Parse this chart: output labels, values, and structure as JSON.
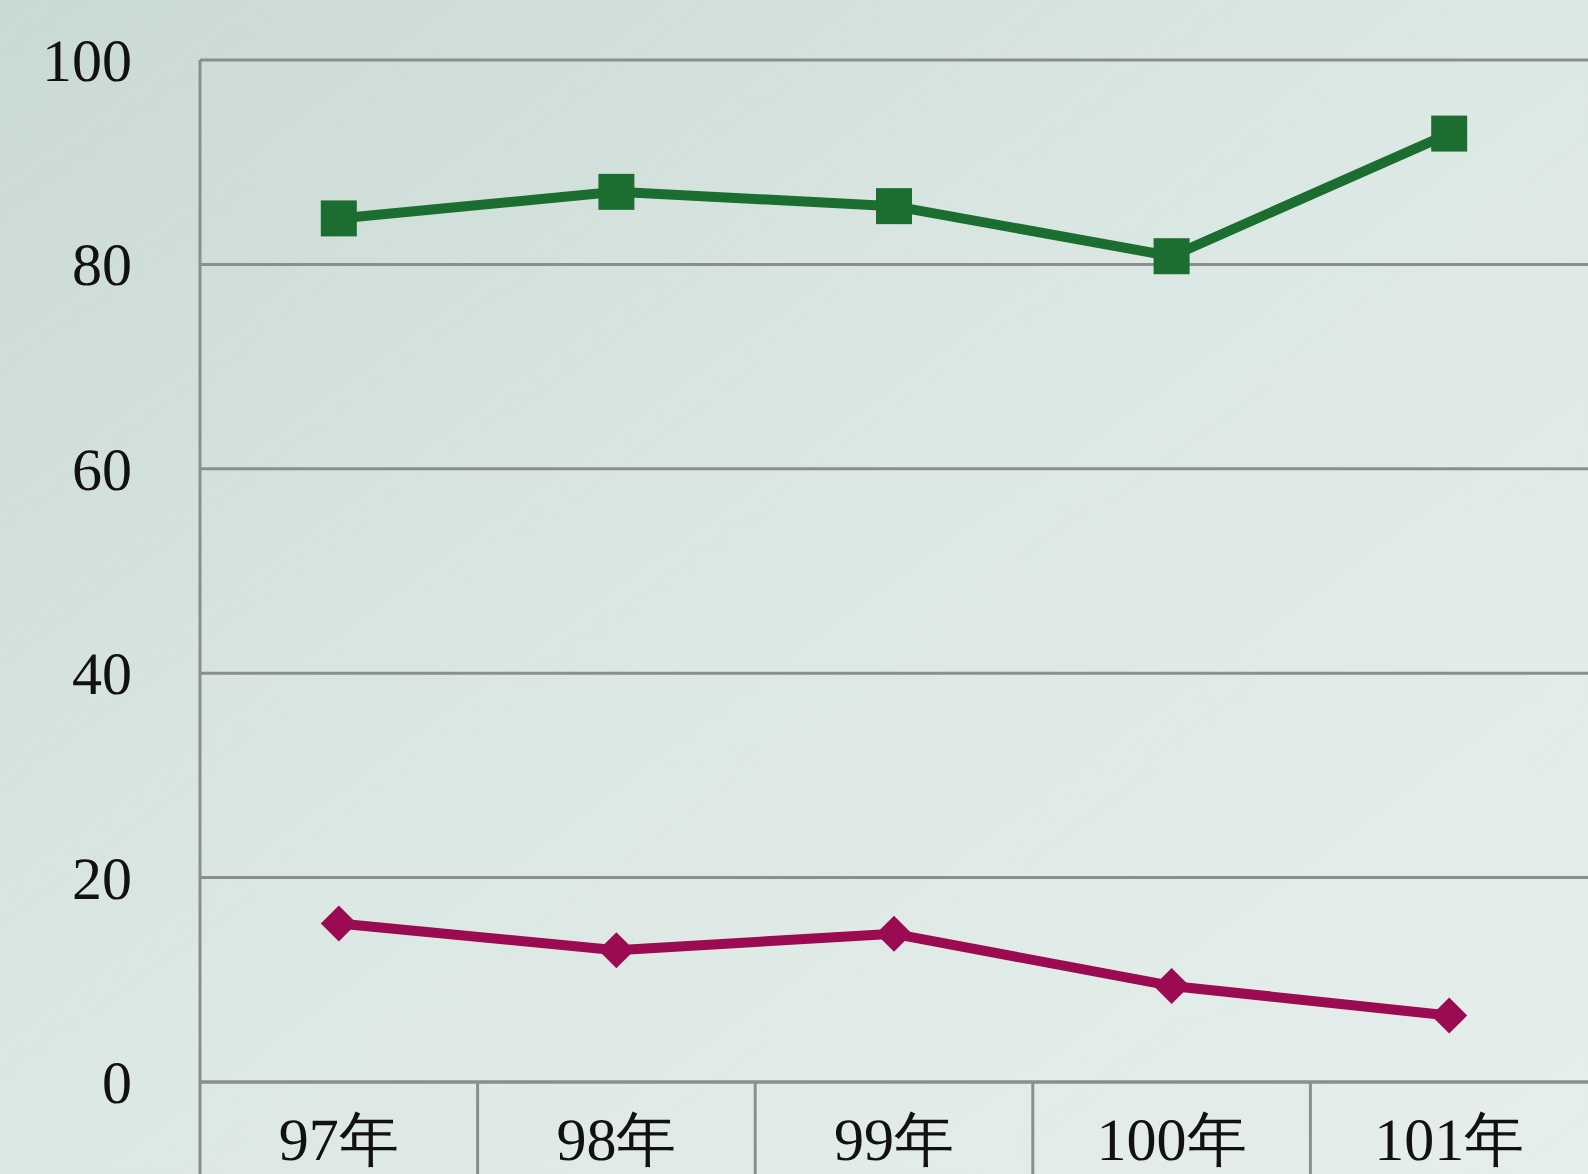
{
  "chart_data": {
    "type": "line",
    "categories": [
      "97年",
      "98年",
      "99年",
      "100年",
      "101年"
    ],
    "series": [
      {
        "color": "#1b6e2f",
        "marker": "square",
        "values": [
          84.5,
          87.1,
          85.7,
          80.8,
          92.8
        ]
      },
      {
        "color": "#9a0b52",
        "marker": "diamond",
        "values": [
          15.5,
          12.9,
          14.5,
          9.4,
          6.5
        ]
      }
    ],
    "ylim": [
      0,
      100
    ],
    "yticks": [
      0,
      20,
      40,
      60,
      80,
      100
    ],
    "grid": "y",
    "line_style": "solid"
  }
}
